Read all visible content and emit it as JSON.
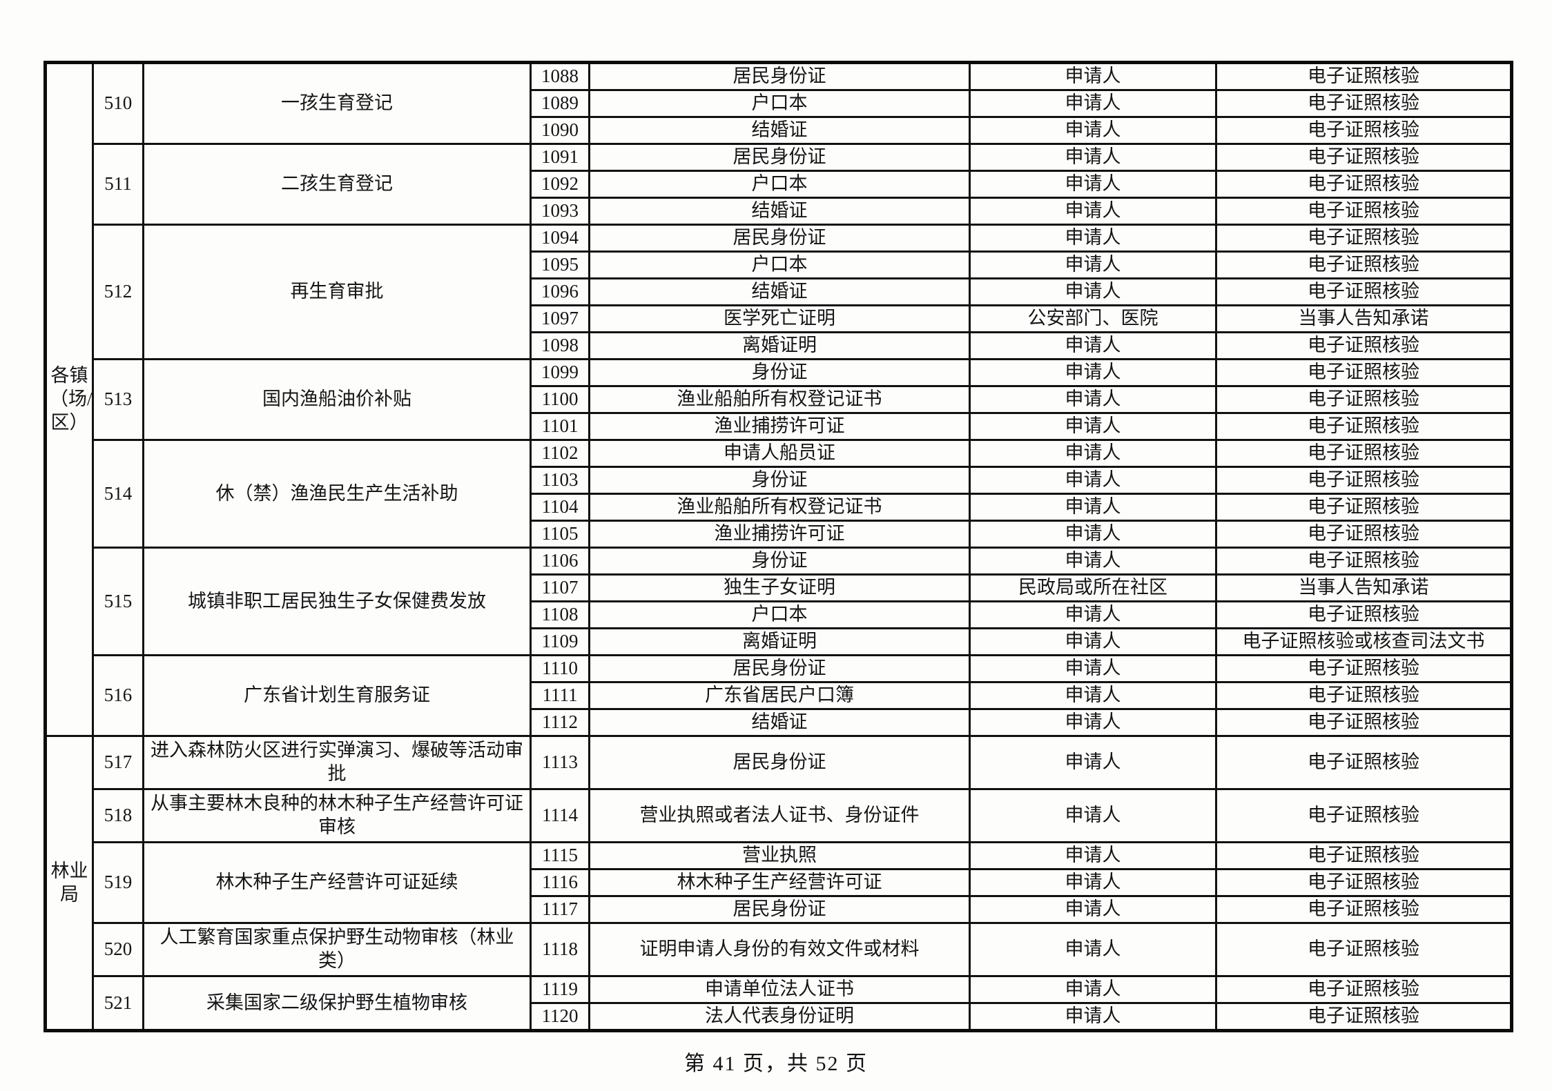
{
  "page": {
    "footer": "第 41 页，共 52 页"
  },
  "table": {
    "groups": [
      {
        "department": "各镇（场/区）",
        "services": [
          {
            "no": "510",
            "name": "一孩生育登记",
            "tall": false,
            "items": [
              {
                "no": "1088",
                "doc": "居民身份证",
                "source": "申请人",
                "verify": "电子证照核验"
              },
              {
                "no": "1089",
                "doc": "户口本",
                "source": "申请人",
                "verify": "电子证照核验"
              },
              {
                "no": "1090",
                "doc": "结婚证",
                "source": "申请人",
                "verify": "电子证照核验"
              }
            ]
          },
          {
            "no": "511",
            "name": "二孩生育登记",
            "tall": false,
            "items": [
              {
                "no": "1091",
                "doc": "居民身份证",
                "source": "申请人",
                "verify": "电子证照核验"
              },
              {
                "no": "1092",
                "doc": "户口本",
                "source": "申请人",
                "verify": "电子证照核验"
              },
              {
                "no": "1093",
                "doc": "结婚证",
                "source": "申请人",
                "verify": "电子证照核验"
              }
            ]
          },
          {
            "no": "512",
            "name": "再生育审批",
            "tall": false,
            "items": [
              {
                "no": "1094",
                "doc": "居民身份证",
                "source": "申请人",
                "verify": "电子证照核验"
              },
              {
                "no": "1095",
                "doc": "户口本",
                "source": "申请人",
                "verify": "电子证照核验"
              },
              {
                "no": "1096",
                "doc": "结婚证",
                "source": "申请人",
                "verify": "电子证照核验"
              },
              {
                "no": "1097",
                "doc": "医学死亡证明",
                "source": "公安部门、医院",
                "verify": "当事人告知承诺"
              },
              {
                "no": "1098",
                "doc": "离婚证明",
                "source": "申请人",
                "verify": "电子证照核验"
              }
            ]
          },
          {
            "no": "513",
            "name": "国内渔船油价补贴",
            "tall": false,
            "items": [
              {
                "no": "1099",
                "doc": "身份证",
                "source": "申请人",
                "verify": "电子证照核验"
              },
              {
                "no": "1100",
                "doc": "渔业船舶所有权登记证书",
                "source": "申请人",
                "verify": "电子证照核验"
              },
              {
                "no": "1101",
                "doc": "渔业捕捞许可证",
                "source": "申请人",
                "verify": "电子证照核验"
              }
            ]
          },
          {
            "no": "514",
            "name": "休（禁）渔渔民生产生活补助",
            "tall": false,
            "items": [
              {
                "no": "1102",
                "doc": "申请人船员证",
                "source": "申请人",
                "verify": "电子证照核验"
              },
              {
                "no": "1103",
                "doc": "身份证",
                "source": "申请人",
                "verify": "电子证照核验"
              },
              {
                "no": "1104",
                "doc": "渔业船舶所有权登记证书",
                "source": "申请人",
                "verify": "电子证照核验"
              },
              {
                "no": "1105",
                "doc": "渔业捕捞许可证",
                "source": "申请人",
                "verify": "电子证照核验"
              }
            ]
          },
          {
            "no": "515",
            "name": "城镇非职工居民独生子女保健费发放",
            "tall": false,
            "items": [
              {
                "no": "1106",
                "doc": "身份证",
                "source": "申请人",
                "verify": "电子证照核验"
              },
              {
                "no": "1107",
                "doc": "独生子女证明",
                "source": "民政局或所在社区",
                "verify": "当事人告知承诺"
              },
              {
                "no": "1108",
                "doc": "户口本",
                "source": "申请人",
                "verify": "电子证照核验"
              },
              {
                "no": "1109",
                "doc": "离婚证明",
                "source": "申请人",
                "verify": "电子证照核验或核查司法文书"
              }
            ]
          },
          {
            "no": "516",
            "name": "广东省计划生育服务证",
            "tall": false,
            "items": [
              {
                "no": "1110",
                "doc": "居民身份证",
                "source": "申请人",
                "verify": "电子证照核验"
              },
              {
                "no": "1111",
                "doc": "广东省居民户口簿",
                "source": "申请人",
                "verify": "电子证照核验"
              },
              {
                "no": "1112",
                "doc": "结婚证",
                "source": "申请人",
                "verify": "电子证照核验"
              }
            ]
          }
        ]
      },
      {
        "department": "林业局",
        "services": [
          {
            "no": "517",
            "name": "进入森林防火区进行实弹演习、爆破等活动审批",
            "tall": true,
            "items": [
              {
                "no": "1113",
                "doc": "居民身份证",
                "source": "申请人",
                "verify": "电子证照核验"
              }
            ]
          },
          {
            "no": "518",
            "name": "从事主要林木良种的林木种子生产经营许可证审核",
            "tall": true,
            "items": [
              {
                "no": "1114",
                "doc": "营业执照或者法人证书、身份证件",
                "source": "申请人",
                "verify": "电子证照核验"
              }
            ]
          },
          {
            "no": "519",
            "name": "林木种子生产经营许可证延续",
            "tall": false,
            "items": [
              {
                "no": "1115",
                "doc": "营业执照",
                "source": "申请人",
                "verify": "电子证照核验"
              },
              {
                "no": "1116",
                "doc": "林木种子生产经营许可证",
                "source": "申请人",
                "verify": "电子证照核验"
              },
              {
                "no": "1117",
                "doc": "居民身份证",
                "source": "申请人",
                "verify": "电子证照核验"
              }
            ]
          },
          {
            "no": "520",
            "name": "人工繁育国家重点保护野生动物审核（林业类）",
            "tall": true,
            "items": [
              {
                "no": "1118",
                "doc": "证明申请人身份的有效文件或材料",
                "source": "申请人",
                "verify": "电子证照核验"
              }
            ]
          },
          {
            "no": "521",
            "name": "采集国家二级保护野生植物审核",
            "tall": false,
            "items": [
              {
                "no": "1119",
                "doc": "申请单位法人证书",
                "source": "申请人",
                "verify": "电子证照核验"
              },
              {
                "no": "1120",
                "doc": "法人代表身份证明",
                "source": "申请人",
                "verify": "电子证照核验"
              }
            ]
          }
        ]
      }
    ]
  }
}
